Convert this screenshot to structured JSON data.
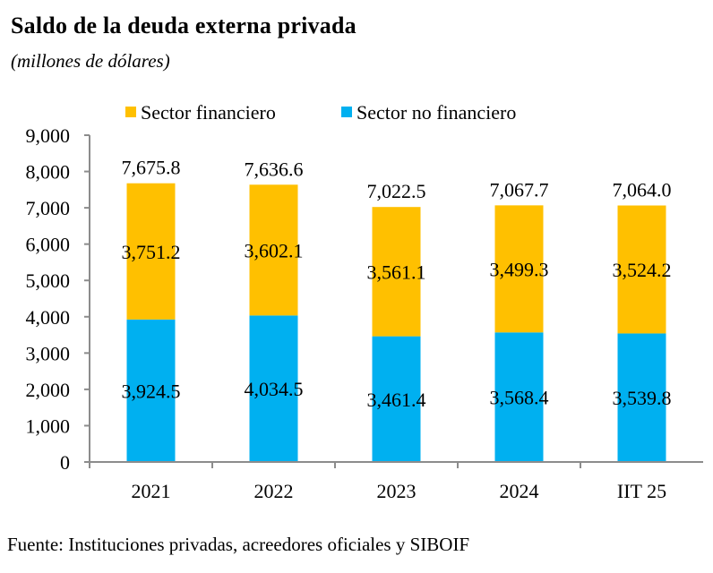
{
  "chart_data": {
    "type": "bar",
    "stacked": true,
    "title": "Saldo de la deuda externa privada",
    "subtitle": "(millones de dólares)",
    "source": "Fuente: Instituciones privadas, acreedores oficiales y SIBOIF",
    "xlabel": "",
    "ylabel": "",
    "ylim": [
      0,
      9000
    ],
    "yticks": [
      0,
      1000,
      2000,
      3000,
      4000,
      5000,
      6000,
      7000,
      8000,
      9000
    ],
    "ytick_labels": [
      "0",
      "1,000",
      "2,000",
      "3,000",
      "4,000",
      "5,000",
      "6,000",
      "7,000",
      "8,000",
      "9,000"
    ],
    "grid": false,
    "legend_position": "top",
    "categories": [
      "2021",
      "2022",
      "2023",
      "2024",
      "IIT 25"
    ],
    "series": [
      {
        "name": "Sector no financiero",
        "color": "#00B0F0",
        "values": [
          3924.5,
          4034.5,
          3461.4,
          3568.4,
          3539.8
        ],
        "labels": [
          "3,924.5",
          "4,034.5",
          "3,461.4",
          "3,568.4",
          "3,539.8"
        ]
      },
      {
        "name": "Sector financiero",
        "color": "#FFC000",
        "values": [
          3751.2,
          3602.1,
          3561.1,
          3499.3,
          3524.2
        ],
        "labels": [
          "3,751.2",
          "3,602.1",
          "3,561.1",
          "3,499.3",
          "3,524.2"
        ]
      }
    ],
    "legend_order": [
      1,
      0
    ],
    "totals": [
      7675.8,
      7636.6,
      7022.5,
      7067.7,
      7064.0
    ],
    "total_labels": [
      "7,675.8",
      "7,636.6",
      "7,022.5",
      "7,067.7",
      "7,064.0"
    ]
  }
}
